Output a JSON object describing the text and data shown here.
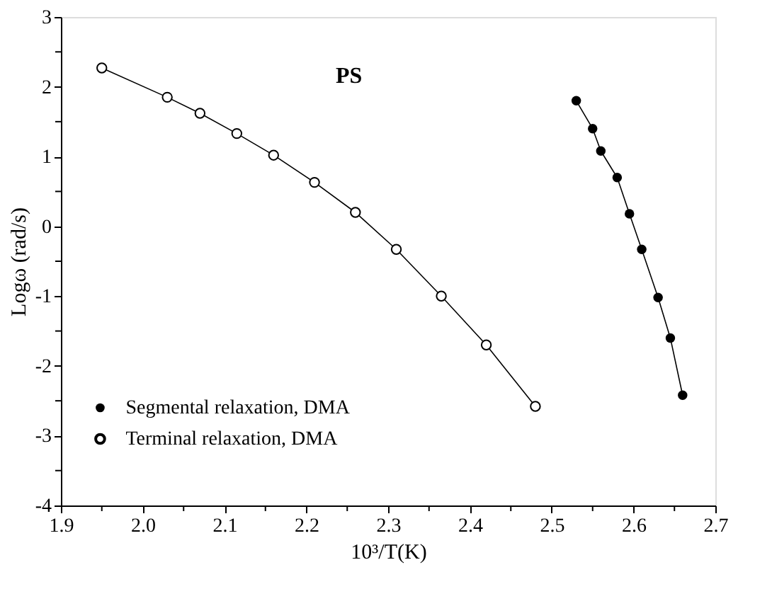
{
  "chart_data": {
    "type": "line",
    "xlabel": "10³/T(K)",
    "ylabel": "Logω (rad/s)",
    "annotations": [
      "PS"
    ],
    "xlim": [
      1.9,
      2.7
    ],
    "xticks": [
      1.9,
      {
        "value": 1.95,
        "label": null
      },
      {
        "value": 2.0,
        "label": "2.0"
      },
      {
        "value": 2.05,
        "label": null
      },
      2.1,
      {
        "value": 2.15,
        "label": null
      },
      2.2,
      {
        "value": 2.25,
        "label": null
      },
      2.3,
      {
        "value": 2.35,
        "label": null
      },
      2.4,
      {
        "value": 2.45,
        "label": null
      },
      2.5,
      {
        "value": 2.55,
        "label": null
      },
      2.6,
      {
        "value": 2.65,
        "label": null
      },
      2.7
    ],
    "ylim": [
      -4,
      3
    ],
    "yticks": [
      -4,
      {
        "value": -3.5,
        "label": null
      },
      -3,
      {
        "value": -2.5,
        "label": null
      },
      -2,
      {
        "value": -1.5,
        "label": null
      },
      -1,
      {
        "value": -0.5,
        "label": null
      },
      0,
      {
        "value": 0.5,
        "label": null
      },
      1,
      {
        "value": 1.5,
        "label": null
      },
      2,
      {
        "value": 2.5,
        "label": null
      },
      3
    ],
    "grid": false,
    "legend": "bottom left",
    "marker": "circle",
    "line_style": "solid",
    "series": [
      {
        "name": "Segmental relaxation, DMA",
        "color": "#000000",
        "x": [
          2.53,
          2.55,
          2.56,
          2.58,
          2.595,
          2.61,
          2.63,
          2.645,
          2.66
        ],
        "values": [
          1.8,
          1.4,
          1.08,
          0.7,
          0.18,
          -0.33,
          -1.02,
          -1.6,
          -2.42
        ]
      },
      {
        "name": "Terminal relaxation, DMA",
        "color": "#000000",
        "x": [
          1.95,
          2.03,
          2.07,
          2.115,
          2.16,
          2.21,
          2.26,
          2.31,
          2.365,
          2.42,
          2.48
        ],
        "values": [
          2.27,
          1.85,
          1.62,
          1.33,
          1.02,
          0.63,
          0.2,
          -0.33,
          -1.0,
          -1.7,
          -2.58
        ]
      }
    ]
  }
}
